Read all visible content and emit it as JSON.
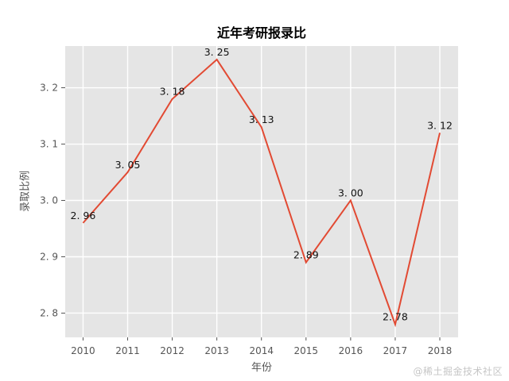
{
  "title": "近年考研报录比",
  "watermark": "@稀土掘金技术社区",
  "colors": {
    "figure_bg": "#ffffff",
    "plot_bg": "#e5e5e5",
    "grid": "#ffffff",
    "line": "#e24a33",
    "tick_text": "#555555",
    "tick_mark": "#555555",
    "point_label_text": "#111111",
    "title_text": "#000000",
    "watermark_text": "#c6c6c6"
  },
  "chart_data": {
    "type": "line",
    "style": "ggplot",
    "title": "近年考研报录比",
    "xlabel": "年份",
    "ylabel": "录取比例",
    "x": [
      2010,
      2011,
      2012,
      2013,
      2014,
      2015,
      2016,
      2017,
      2018
    ],
    "values": [
      2.96,
      3.05,
      3.18,
      3.25,
      3.13,
      2.89,
      3.0,
      2.78,
      3.12
    ],
    "point_labels": [
      "2. 96",
      "3. 05",
      "3. 18",
      "3. 25",
      "3. 13",
      "2. 89",
      "3. 00",
      "2. 78",
      "3. 12"
    ],
    "x_tick_labels": [
      "2010",
      "2011",
      "2012",
      "2013",
      "2014",
      "2015",
      "2016",
      "2017",
      "2018"
    ],
    "y_ticks": [
      2.8,
      2.9,
      3.0,
      3.1,
      3.2
    ],
    "y_tick_labels": [
      "2. 8",
      "2. 9",
      "3. 0",
      "3. 1",
      "3. 2"
    ],
    "xlim": [
      2009.6,
      2018.41
    ],
    "ylim": [
      2.757,
      3.274
    ],
    "grid": true,
    "legend": "none",
    "markers": "none"
  }
}
